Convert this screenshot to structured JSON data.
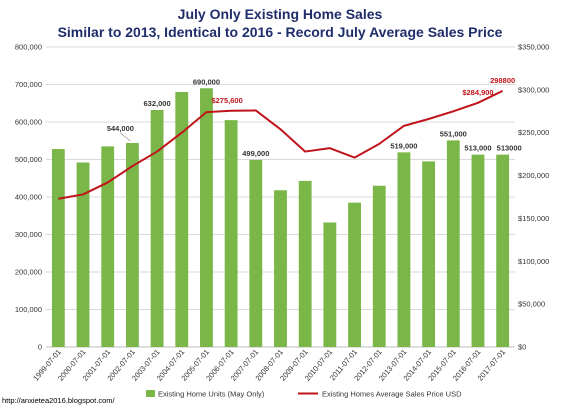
{
  "chart_data": {
    "type": "bar",
    "title": "July Only Existing Home Sales",
    "subtitle": "Similar to 2013, Identical to 2016 - Record July Average Sales Price",
    "categories": [
      "1999-07-01",
      "2000-07-01",
      "2001-07-01",
      "2002-07-01",
      "2003-07-01",
      "2004-07-01",
      "2005-07-01",
      "2006-07-01",
      "2007-07-01",
      "2008-07-01",
      "2009-07-01",
      "2010-07-01",
      "2011-07-01",
      "2012-07-01",
      "2013-07-01",
      "2014-07-01",
      "2015-07-01",
      "2016-07-01",
      "2017-07-01"
    ],
    "series": [
      {
        "name": "Existing Home Units (May Only)",
        "type": "bar",
        "axis": "left",
        "color": "#7ab648",
        "values": [
          528000,
          492000,
          535000,
          544000,
          632000,
          680000,
          690000,
          605000,
          499000,
          418000,
          443000,
          332000,
          385000,
          430000,
          519000,
          495000,
          551000,
          513000,
          513000
        ],
        "labels": [
          "",
          "",
          "",
          "544,000",
          "632,000",
          "",
          "690,000",
          "",
          "499,000",
          "",
          "",
          "",
          "",
          "",
          "519,000",
          "",
          "551,000",
          "513,000",
          "513000"
        ]
      },
      {
        "name": "Existing Homes Average Sales Price USD",
        "type": "line",
        "axis": "right",
        "color": "#c0141c",
        "values": [
          173000,
          178000,
          192000,
          211000,
          228000,
          250000,
          274000,
          275600,
          276000,
          254000,
          228000,
          232000,
          221000,
          237000,
          258000,
          266000,
          275000,
          284900,
          298800
        ],
        "labels": [
          "",
          "",
          "",
          "",
          "",
          "",
          "",
          "$275,600",
          "",
          "",
          "",
          "",
          "",
          "",
          "",
          "",
          "",
          "$284,900",
          "298800"
        ]
      }
    ],
    "y_left": {
      "min": 0,
      "max": 800000,
      "ticks": [
        "0",
        "100,000",
        "200,000",
        "300,000",
        "400,000",
        "500,000",
        "600,000",
        "700,000",
        "800,000"
      ]
    },
    "y_right": {
      "min": 0,
      "max": 350000,
      "ticks": [
        "$0",
        "$50,000",
        "$100,000",
        "$150,000",
        "$200,000",
        "$250,000",
        "$300,000",
        "$350,000"
      ]
    },
    "grid": true,
    "legend_position": "bottom",
    "source": "http://anxietea2016.blogspot.com/"
  }
}
